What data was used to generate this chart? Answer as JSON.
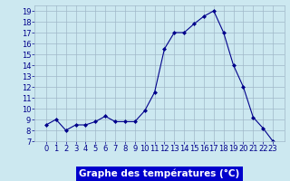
{
  "hours": [
    0,
    1,
    2,
    3,
    4,
    5,
    6,
    7,
    8,
    9,
    10,
    11,
    12,
    13,
    14,
    15,
    16,
    17,
    18,
    19,
    20,
    21,
    22,
    23
  ],
  "temps": [
    8.5,
    9.0,
    8.0,
    8.5,
    8.5,
    8.8,
    9.3,
    8.8,
    8.8,
    8.8,
    9.8,
    11.5,
    15.5,
    17.0,
    17.0,
    17.8,
    18.5,
    19.0,
    17.0,
    14.0,
    12.0,
    9.2,
    8.2,
    7.0
  ],
  "line_color": "#00008B",
  "marker": "D",
  "marker_size": 2,
  "bg_color": "#cce8f0",
  "grid_color": "#a0b8c8",
  "xlabel": "Graphe des températures (°C)",
  "xlabel_bar_color": "#0000cc",
  "xlabel_text_color": "#ffffff",
  "ylim": [
    7,
    19.5
  ],
  "yticks": [
    7,
    8,
    9,
    10,
    11,
    12,
    13,
    14,
    15,
    16,
    17,
    18,
    19
  ],
  "xticks": [
    0,
    1,
    2,
    3,
    4,
    5,
    6,
    7,
    8,
    9,
    10,
    11,
    12,
    13,
    14,
    15,
    16,
    17,
    18,
    19,
    20,
    21,
    22,
    23
  ],
  "tick_label_color": "#00008B",
  "tick_label_fontsize": 6,
  "xlabel_fontsize": 7.5
}
